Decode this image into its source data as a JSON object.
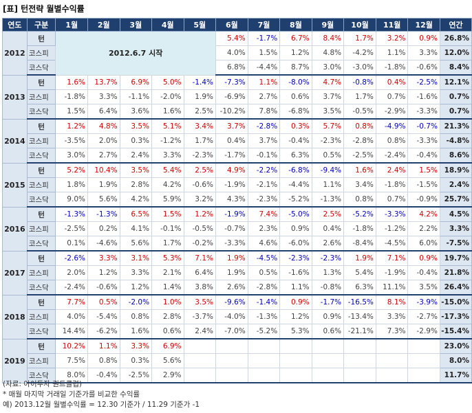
{
  "title": "[표] 턴전략 월별수익률",
  "headers": [
    "연도",
    "구분",
    "1월",
    "2월",
    "3월",
    "4월",
    "5월",
    "6월",
    "7월",
    "8월",
    "9월",
    "10월",
    "11월",
    "12월",
    "연간"
  ],
  "start_note": "2012.6.7 시작",
  "label_colors": {
    "positive": "#d60000",
    "negative": "#0000c8",
    "neutral": "#444444",
    "header_bg": "#1f3f6f",
    "label_bg": "#dde7f2"
  },
  "years": [
    {
      "year": "2012",
      "rows": [
        {
          "label": "턴",
          "cells": [
            "",
            "",
            "",
            "",
            "",
            "5.4%",
            "-1.7%",
            "6.7%",
            "8.4%",
            "1.7%",
            "3.2%",
            "0.9%"
          ],
          "annual": "26.8%"
        },
        {
          "label": "코스피",
          "cells": [
            "",
            "",
            "",
            "",
            "",
            "4.0%",
            "1.5%",
            "1.2%",
            "4.8%",
            "-4.2%",
            "1.1%",
            "3.3%"
          ],
          "annual": "12.0%"
        },
        {
          "label": "코스닥",
          "cells": [
            "",
            "",
            "",
            "",
            "",
            "6.8%",
            "-4.4%",
            "8.7%",
            "3.0%",
            "-3.0%",
            "-1.8%",
            "-0.6%"
          ],
          "annual": "8.4%"
        }
      ]
    },
    {
      "year": "2013",
      "rows": [
        {
          "label": "턴",
          "cells": [
            "1.6%",
            "13.7%",
            "6.9%",
            "5.0%",
            "-1.4%",
            "-7.3%",
            "1.1%",
            "-8.0%",
            "4.7%",
            "-0.8%",
            "0.4%",
            "-2.5%"
          ],
          "annual": "12.1%"
        },
        {
          "label": "코스피",
          "cells": [
            "-1.8%",
            "3.3%",
            "-1.1%",
            "-2.0%",
            "1.9%",
            "-6.9%",
            "2.7%",
            "0.6%",
            "3.7%",
            "1.7%",
            "0.7%",
            "-1.6%"
          ],
          "annual": "0.7%"
        },
        {
          "label": "코스닥",
          "cells": [
            "1.5%",
            "6.4%",
            "3.6%",
            "1.6%",
            "2.5%",
            "-10.2%",
            "7.8%",
            "-6.8%",
            "3.5%",
            "-0.5%",
            "-2.9%",
            "-3.3%"
          ],
          "annual": "0.7%"
        }
      ]
    },
    {
      "year": "2014",
      "rows": [
        {
          "label": "턴",
          "cells": [
            "1.2%",
            "4.8%",
            "3.5%",
            "5.1%",
            "3.4%",
            "3.7%",
            "-2.8%",
            "0.3%",
            "5.7%",
            "0.8%",
            "-4.9%",
            "-0.7%"
          ],
          "annual": "21.3%"
        },
        {
          "label": "코스피",
          "cells": [
            "-3.5%",
            "2.0%",
            "0.3%",
            "-1.2%",
            "1.7%",
            "0.4%",
            "3.7%",
            "-0.4%",
            "-2.3%",
            "-2.8%",
            "0.8%",
            "-3.3%"
          ],
          "annual": "-4.8%"
        },
        {
          "label": "코스닥",
          "cells": [
            "3.0%",
            "2.7%",
            "2.4%",
            "3.3%",
            "-2.3%",
            "-1.7%",
            "-0.1%",
            "6.3%",
            "0.5%",
            "-2.5%",
            "-2.4%",
            "-0.4%"
          ],
          "annual": "8.6%"
        }
      ]
    },
    {
      "year": "2015",
      "rows": [
        {
          "label": "턴",
          "cells": [
            "5.2%",
            "10.4%",
            "3.5%",
            "5.4%",
            "2.5%",
            "4.9%",
            "-2.2%",
            "-6.8%",
            "-9.4%",
            "1.6%",
            "2.4%",
            "1.5%"
          ],
          "annual": "18.9%"
        },
        {
          "label": "코스피",
          "cells": [
            "1.8%",
            "1.9%",
            "2.8%",
            "4.2%",
            "-0.6%",
            "-1.9%",
            "-2.1%",
            "-4.4%",
            "1.1%",
            "3.4%",
            "-1.8%",
            "-1.5%"
          ],
          "annual": "2.4%"
        },
        {
          "label": "코스닥",
          "cells": [
            "9.0%",
            "5.6%",
            "4.2%",
            "5.9%",
            "3.2%",
            "4.3%",
            "-2.3%",
            "-5.2%",
            "-1.3%",
            "0.8%",
            "0.7%",
            "-0.9%"
          ],
          "annual": "25.7%"
        }
      ]
    },
    {
      "year": "2016",
      "rows": [
        {
          "label": "턴",
          "cells": [
            "-1.3%",
            "-1.3%",
            "6.5%",
            "1.5%",
            "1.2%",
            "-1.9%",
            "7.4%",
            "-5.0%",
            "2.5%",
            "-5.2%",
            "-3.3%",
            "4.2%"
          ],
          "annual": "4.5%"
        },
        {
          "label": "코스피",
          "cells": [
            "-2.5%",
            "0.2%",
            "4.1%",
            "-0.1%",
            "-0.5%",
            "-0.7%",
            "2.3%",
            "0.9%",
            "0.4%",
            "-1.8%",
            "-1.2%",
            "2.2%"
          ],
          "annual": "3.3%"
        },
        {
          "label": "코스닥",
          "cells": [
            "0.1%",
            "-4.6%",
            "5.6%",
            "1.7%",
            "-0.2%",
            "-3.3%",
            "4.6%",
            "-6.0%",
            "2.6%",
            "-8.4%",
            "-4.5%",
            "6.0%"
          ],
          "annual": "-7.5%"
        }
      ]
    },
    {
      "year": "2017",
      "rows": [
        {
          "label": "턴",
          "cells": [
            "-2.6%",
            "3.3%",
            "3.1%",
            "5.3%",
            "7.1%",
            "1.9%",
            "-4.5%",
            "-2.3%",
            "-2.3%",
            "1.9%",
            "7.1%",
            "0.9%"
          ],
          "annual": "19.7%"
        },
        {
          "label": "코스피",
          "cells": [
            "2.0%",
            "1.2%",
            "3.3%",
            "2.1%",
            "6.4%",
            "1.9%",
            "0.5%",
            "-1.6%",
            "1.3%",
            "5.4%",
            "-1.9%",
            "-0.4%"
          ],
          "annual": "21.8%"
        },
        {
          "label": "코스닥",
          "cells": [
            "-2.4%",
            "-0.6%",
            "1.2%",
            "1.4%",
            "3.8%",
            "2.6%",
            "-2.8%",
            "1.1%",
            "-0.8%",
            "6.3%",
            "11.1%",
            "3.5%"
          ],
          "annual": "26.4%"
        }
      ]
    },
    {
      "year": "2018",
      "rows": [
        {
          "label": "턴",
          "cells": [
            "7.7%",
            "0.5%",
            "-2.0%",
            "1.0%",
            "3.5%",
            "-9.6%",
            "-1.4%",
            "0.9%",
            "-1.7%",
            "-16.5%",
            "8.1%",
            "-3.9%"
          ],
          "annual": "-15.0%"
        },
        {
          "label": "코스피",
          "cells": [
            "4.0%",
            "-5.4%",
            "0.8%",
            "2.8%",
            "-3.7%",
            "-4.0%",
            "-1.3%",
            "1.2%",
            "0.9%",
            "-13.4%",
            "3.3%",
            "-2.7%"
          ],
          "annual": "-17.3%"
        },
        {
          "label": "코스닥",
          "cells": [
            "14.4%",
            "-6.2%",
            "1.6%",
            "0.6%",
            "2.4%",
            "-7.0%",
            "-5.2%",
            "5.3%",
            "0.6%",
            "-21.1%",
            "7.3%",
            "-2.9%"
          ],
          "annual": "-15.4%"
        }
      ]
    },
    {
      "year": "2019",
      "rows": [
        {
          "label": "턴",
          "cells": [
            "10.2%",
            "1.1%",
            "3.3%",
            "6.9%",
            "",
            "",
            "",
            "",
            "",
            "",
            "",
            ""
          ],
          "annual": "23.0%"
        },
        {
          "label": "코스피",
          "cells": [
            "7.5%",
            "0.8%",
            "0.3%",
            "5.6%",
            "",
            "",
            "",
            "",
            "",
            "",
            "",
            ""
          ],
          "annual": "8.0%"
        },
        {
          "label": "코스닥",
          "cells": [
            "8.0%",
            "-0.4%",
            "-2.5%",
            "2.9%",
            "",
            "",
            "",
            "",
            "",
            "",
            "",
            ""
          ],
          "annual": "11.7%"
        }
      ]
    }
  ],
  "notes": [
    "(자료: 아이투자 퀀트클럽)",
    "* 매월 마지막 거래일 기준가를 비교한 수익률",
    "예) 2013.12월 월별수익률 = 12.30 기준가 / 11.29 기준가 -1"
  ]
}
